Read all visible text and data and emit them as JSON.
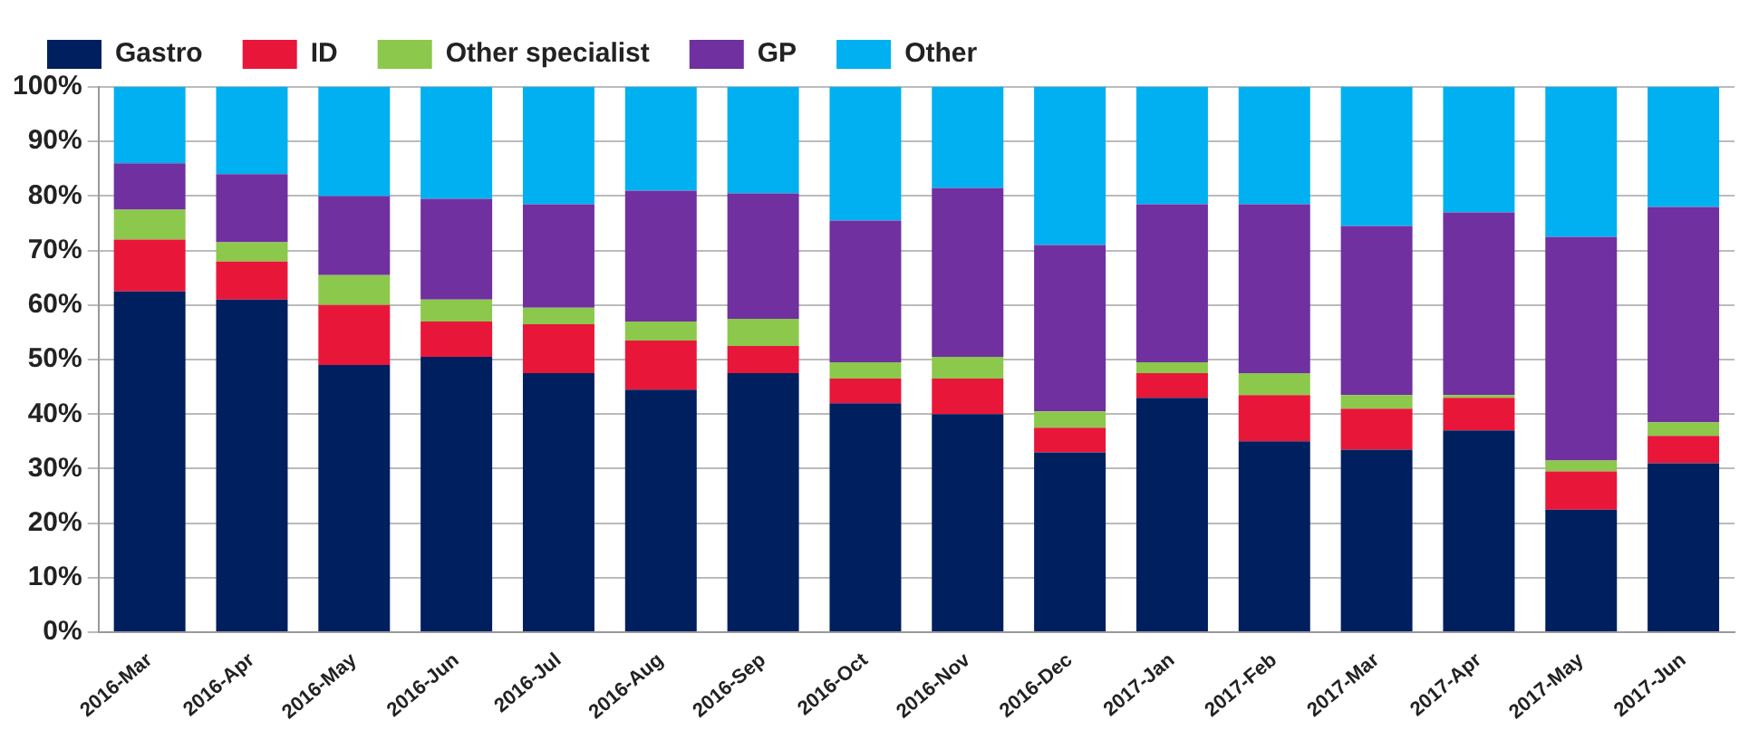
{
  "chart_data": {
    "type": "bar",
    "stacked": true,
    "categories": [
      "2016-Mar",
      "2016-Apr",
      "2016-May",
      "2016-Jun",
      "2016-Jul",
      "2016-Aug",
      "2016-Sep",
      "2016-Oct",
      "2016-Nov",
      "2016-Dec",
      "2017-Jan",
      "2017-Feb",
      "2017-Mar",
      "2017-Apr",
      "2017-May",
      "2017-Jun"
    ],
    "series": [
      {
        "name": "Gastro",
        "color": "#001f5f",
        "values": [
          62.5,
          61,
          49,
          50.5,
          47.5,
          44.5,
          47.5,
          42,
          40,
          33,
          43,
          35,
          33.5,
          37,
          22.5,
          31
        ]
      },
      {
        "name": "ID",
        "color": "#e8173a",
        "values": [
          9.5,
          7,
          11,
          6.5,
          9,
          9,
          5,
          4.5,
          6.5,
          4.5,
          4.5,
          8.5,
          7.5,
          6,
          7,
          5
        ]
      },
      {
        "name": "Other specialist",
        "color": "#8cc84b",
        "values": [
          5.5,
          3.5,
          5.5,
          4,
          3,
          3.5,
          5,
          3,
          4,
          3,
          2,
          4,
          2.5,
          0.5,
          2,
          2.5
        ]
      },
      {
        "name": "GP",
        "color": "#7030a0",
        "values": [
          8.5,
          12.5,
          14.5,
          18.5,
          19,
          24,
          23,
          26,
          31,
          30.5,
          29,
          31,
          31,
          33.5,
          41,
          39.5
        ]
      },
      {
        "name": "Other",
        "color": "#00b0f0",
        "values": [
          14,
          16,
          20,
          20.5,
          21.5,
          19,
          19.5,
          24.5,
          18.5,
          29,
          21.5,
          21.5,
          25.5,
          23,
          27.5,
          22
        ]
      }
    ],
    "ylim": [
      0,
      100
    ],
    "yticks": [
      {
        "value": 0,
        "label": "0%"
      },
      {
        "value": 10,
        "label": "10%"
      },
      {
        "value": 20,
        "label": "20%"
      },
      {
        "value": 30,
        "label": "30%"
      },
      {
        "value": 40,
        "label": "40%"
      },
      {
        "value": 50,
        "label": "50%"
      },
      {
        "value": 60,
        "label": "60%"
      },
      {
        "value": 70,
        "label": "70%"
      },
      {
        "value": 80,
        "label": "80%"
      },
      {
        "value": 90,
        "label": "90%"
      },
      {
        "value": 100,
        "label": "100%"
      }
    ],
    "grid": "y",
    "legend": "top left"
  }
}
